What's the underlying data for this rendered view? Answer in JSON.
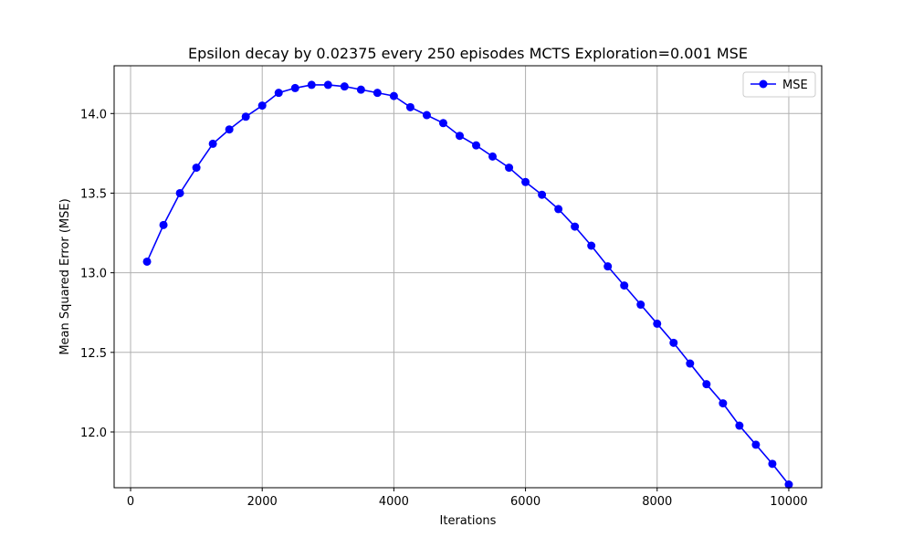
{
  "chart_data": {
    "type": "line",
    "title": "Epsilon decay by 0.02375 every 250 episodes MCTS Exploration=0.001 MSE",
    "xlabel": "Iterations",
    "ylabel": "Mean Squared Error (MSE)",
    "xlim": [
      -250,
      10500
    ],
    "ylim": [
      11.65,
      14.3
    ],
    "xticks": [
      0,
      2000,
      4000,
      6000,
      8000,
      10000
    ],
    "yticks": [
      12.0,
      12.5,
      13.0,
      13.5,
      14.0
    ],
    "xtick_labels": [
      "0",
      "2000",
      "4000",
      "6000",
      "8000",
      "10000"
    ],
    "ytick_labels": [
      "12.0",
      "12.5",
      "13.0",
      "13.5",
      "14.0"
    ],
    "grid": true,
    "legend_position": "top-right",
    "series": [
      {
        "name": "MSE",
        "color": "#0000ff",
        "marker": "circle",
        "x": [
          250,
          500,
          750,
          1000,
          1250,
          1500,
          1750,
          2000,
          2250,
          2500,
          2750,
          3000,
          3250,
          3500,
          3750,
          4000,
          4250,
          4500,
          4750,
          5000,
          5250,
          5500,
          5750,
          6000,
          6250,
          6500,
          6750,
          7000,
          7250,
          7500,
          7750,
          8000,
          8250,
          8500,
          8750,
          9000,
          9250,
          9500,
          9750,
          10000
        ],
        "y": [
          13.07,
          13.3,
          13.5,
          13.66,
          13.81,
          13.9,
          13.98,
          14.05,
          14.13,
          14.16,
          14.18,
          14.18,
          14.17,
          14.15,
          14.13,
          14.11,
          14.04,
          13.99,
          13.94,
          13.86,
          13.8,
          13.73,
          13.66,
          13.57,
          13.49,
          13.4,
          13.29,
          13.17,
          13.04,
          12.92,
          12.8,
          12.68,
          12.56,
          12.43,
          12.3,
          12.18,
          12.04,
          11.92,
          11.8,
          11.67
        ]
      }
    ]
  }
}
